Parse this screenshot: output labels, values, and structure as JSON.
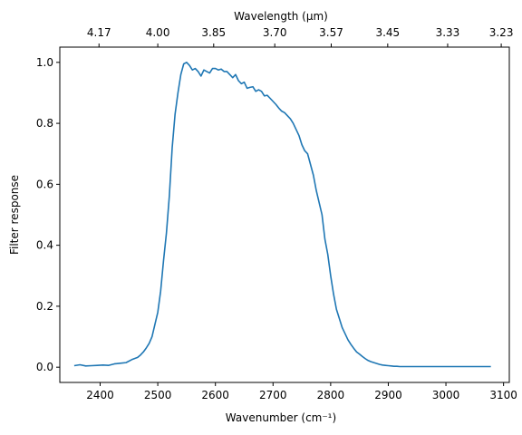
{
  "chart_data": {
    "type": "line",
    "xlabel": "Wavenumber (cm⁻¹)",
    "ylabel": "Filter response",
    "top_xlabel": "Wavelength (μm)",
    "xlim": [
      2330,
      3110
    ],
    "ylim": [
      -0.05,
      1.05
    ],
    "grid": false,
    "x_ticks": [
      2400,
      2500,
      2600,
      2700,
      2800,
      2900,
      3000,
      3100
    ],
    "x_tick_labels": [
      "2400",
      "2500",
      "2600",
      "2700",
      "2800",
      "2900",
      "3000",
      "3100"
    ],
    "y_ticks": [
      0.0,
      0.2,
      0.4,
      0.6,
      0.8,
      1.0
    ],
    "y_tick_labels": [
      "0.0",
      "0.2",
      "0.4",
      "0.6",
      "0.8",
      "1.0"
    ],
    "top_ticks": [
      {
        "wavenumber": 2398,
        "label": "4.17"
      },
      {
        "wavenumber": 2500,
        "label": "4.00"
      },
      {
        "wavenumber": 2597,
        "label": "3.85"
      },
      {
        "wavenumber": 2703,
        "label": "3.70"
      },
      {
        "wavenumber": 2801,
        "label": "3.57"
      },
      {
        "wavenumber": 2899,
        "label": "3.45"
      },
      {
        "wavenumber": 3003,
        "label": "3.33"
      },
      {
        "wavenumber": 3096,
        "label": "3.23"
      }
    ],
    "series": [
      {
        "color": "#1f77b4",
        "x": [
          2355,
          2365,
          2375,
          2385,
          2395,
          2405,
          2415,
          2425,
          2435,
          2445,
          2455,
          2465,
          2470,
          2475,
          2480,
          2485,
          2490,
          2495,
          2500,
          2505,
          2510,
          2515,
          2520,
          2525,
          2530,
          2535,
          2540,
          2545,
          2550,
          2555,
          2560,
          2565,
          2570,
          2575,
          2580,
          2585,
          2590,
          2595,
          2600,
          2605,
          2610,
          2615,
          2620,
          2625,
          2630,
          2635,
          2640,
          2645,
          2650,
          2655,
          2660,
          2665,
          2670,
          2675,
          2680,
          2685,
          2690,
          2695,
          2700,
          2705,
          2710,
          2715,
          2720,
          2725,
          2730,
          2735,
          2740,
          2745,
          2750,
          2755,
          2760,
          2765,
          2770,
          2775,
          2780,
          2785,
          2790,
          2795,
          2800,
          2805,
          2810,
          2815,
          2820,
          2825,
          2830,
          2835,
          2840,
          2845,
          2850,
          2855,
          2860,
          2865,
          2870,
          2875,
          2880,
          2885,
          2890,
          2895,
          2900,
          2905,
          2910,
          2915,
          2920,
          2925,
          2930,
          2935,
          2940,
          2945,
          2950,
          2955,
          2960,
          2970,
          2980,
          2990,
          3000,
          3010,
          3020,
          3030,
          3040,
          3050,
          3060,
          3070,
          3078
        ],
        "y": [
          0.005,
          0.008,
          0.004,
          0.005,
          0.006,
          0.007,
          0.006,
          0.011,
          0.013,
          0.015,
          0.025,
          0.032,
          0.04,
          0.05,
          0.063,
          0.078,
          0.1,
          0.14,
          0.18,
          0.25,
          0.35,
          0.44,
          0.56,
          0.72,
          0.83,
          0.9,
          0.96,
          0.995,
          1.0,
          0.99,
          0.975,
          0.98,
          0.97,
          0.955,
          0.975,
          0.97,
          0.965,
          0.98,
          0.98,
          0.975,
          0.978,
          0.97,
          0.97,
          0.96,
          0.95,
          0.96,
          0.94,
          0.93,
          0.935,
          0.915,
          0.918,
          0.92,
          0.905,
          0.91,
          0.905,
          0.89,
          0.892,
          0.882,
          0.872,
          0.862,
          0.85,
          0.84,
          0.835,
          0.825,
          0.815,
          0.8,
          0.78,
          0.76,
          0.73,
          0.71,
          0.7,
          0.665,
          0.63,
          0.58,
          0.54,
          0.5,
          0.42,
          0.37,
          0.3,
          0.24,
          0.19,
          0.16,
          0.13,
          0.11,
          0.09,
          0.075,
          0.062,
          0.05,
          0.043,
          0.035,
          0.028,
          0.022,
          0.018,
          0.015,
          0.012,
          0.009,
          0.007,
          0.006,
          0.005,
          0.004,
          0.003,
          0.003,
          0.002,
          0.002,
          0.002,
          0.002,
          0.002,
          0.002,
          0.002,
          0.002,
          0.002,
          0.002,
          0.002,
          0.002,
          0.002,
          0.002,
          0.002,
          0.002,
          0.002,
          0.002,
          0.002,
          0.002,
          0.002
        ]
      }
    ]
  }
}
